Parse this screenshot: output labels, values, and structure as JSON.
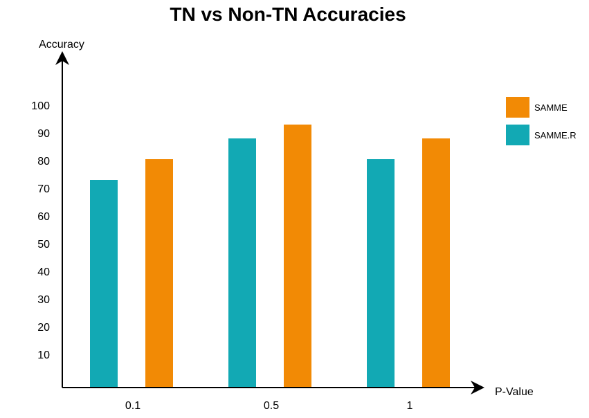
{
  "chart_data": {
    "type": "bar",
    "title": "TN vs Non-TN Accuracies",
    "xlabel": "P-Value",
    "ylabel": "Accuracy",
    "categories": [
      "0.1",
      "0.5",
      "1"
    ],
    "series": [
      {
        "name": "SAMME.R",
        "color": "#12a9b4",
        "values": [
          73,
          88,
          80.5
        ]
      },
      {
        "name": "SAMME",
        "color": "#f28a05",
        "values": [
          80.5,
          93,
          88
        ]
      }
    ],
    "yticks": [
      "10",
      "20",
      "30",
      "40",
      "50",
      "60",
      "70",
      "80",
      "90",
      "100"
    ],
    "ylim": [
      0,
      100
    ],
    "grid": false,
    "legend_position": "top-right",
    "legend_order": [
      "SAMME",
      "SAMME.R"
    ]
  }
}
